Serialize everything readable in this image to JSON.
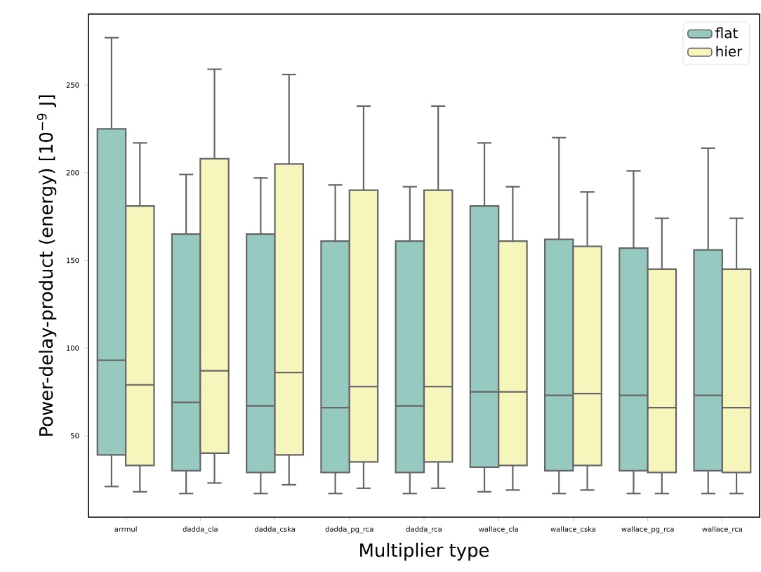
{
  "chart_data": {
    "type": "box",
    "xlabel": "Multiplier type",
    "ylabel": "Power-delay-product (energy) [10$^{−9}$ J]",
    "categories": [
      "arrmul",
      "dadda_cla",
      "dadda_cska",
      "dadda_pg_rca",
      "dadda_rca",
      "wallace_cla",
      "wallace_cska",
      "wallace_pg_rca",
      "wallace_rca"
    ],
    "series": [
      {
        "name": "flat",
        "color": "#96cac1",
        "boxes": [
          {
            "low": 21,
            "q1": 39,
            "median": 93,
            "q3": 225,
            "high": 277
          },
          {
            "low": 17,
            "q1": 30,
            "median": 69,
            "q3": 165,
            "high": 199
          },
          {
            "low": 17,
            "q1": 29,
            "median": 67,
            "q3": 165,
            "high": 197
          },
          {
            "low": 17,
            "q1": 29,
            "median": 66,
            "q3": 161,
            "high": 193
          },
          {
            "low": 17,
            "q1": 29,
            "median": 67,
            "q3": 161,
            "high": 192
          },
          {
            "low": 18,
            "q1": 32,
            "median": 75,
            "q3": 181,
            "high": 217
          },
          {
            "low": 17,
            "q1": 30,
            "median": 73,
            "q3": 162,
            "high": 220
          },
          {
            "low": 17,
            "q1": 30,
            "median": 73,
            "q3": 157,
            "high": 201
          },
          {
            "low": 17,
            "q1": 30,
            "median": 73,
            "q3": 156,
            "high": 214
          }
        ]
      },
      {
        "name": "hier",
        "color": "#f6f6bc",
        "boxes": [
          {
            "low": 18,
            "q1": 33,
            "median": 79,
            "q3": 181,
            "high": 217
          },
          {
            "low": 23,
            "q1": 40,
            "median": 87,
            "q3": 208,
            "high": 259
          },
          {
            "low": 22,
            "q1": 39,
            "median": 86,
            "q3": 205,
            "high": 256
          },
          {
            "low": 20,
            "q1": 35,
            "median": 78,
            "q3": 190,
            "high": 238
          },
          {
            "low": 20,
            "q1": 35,
            "median": 78,
            "q3": 190,
            "high": 238
          },
          {
            "low": 19,
            "q1": 33,
            "median": 75,
            "q3": 161,
            "high": 192
          },
          {
            "low": 19,
            "q1": 33,
            "median": 74,
            "q3": 158,
            "high": 189
          },
          {
            "low": 17,
            "q1": 29,
            "median": 66,
            "q3": 145,
            "high": 174
          },
          {
            "low": 17,
            "q1": 29,
            "median": 66,
            "q3": 145,
            "high": 174
          }
        ]
      }
    ],
    "ylim": [
      3.5,
      290.5
    ],
    "yticks": [
      50,
      100,
      150,
      200,
      250
    ],
    "legend": "top right"
  }
}
